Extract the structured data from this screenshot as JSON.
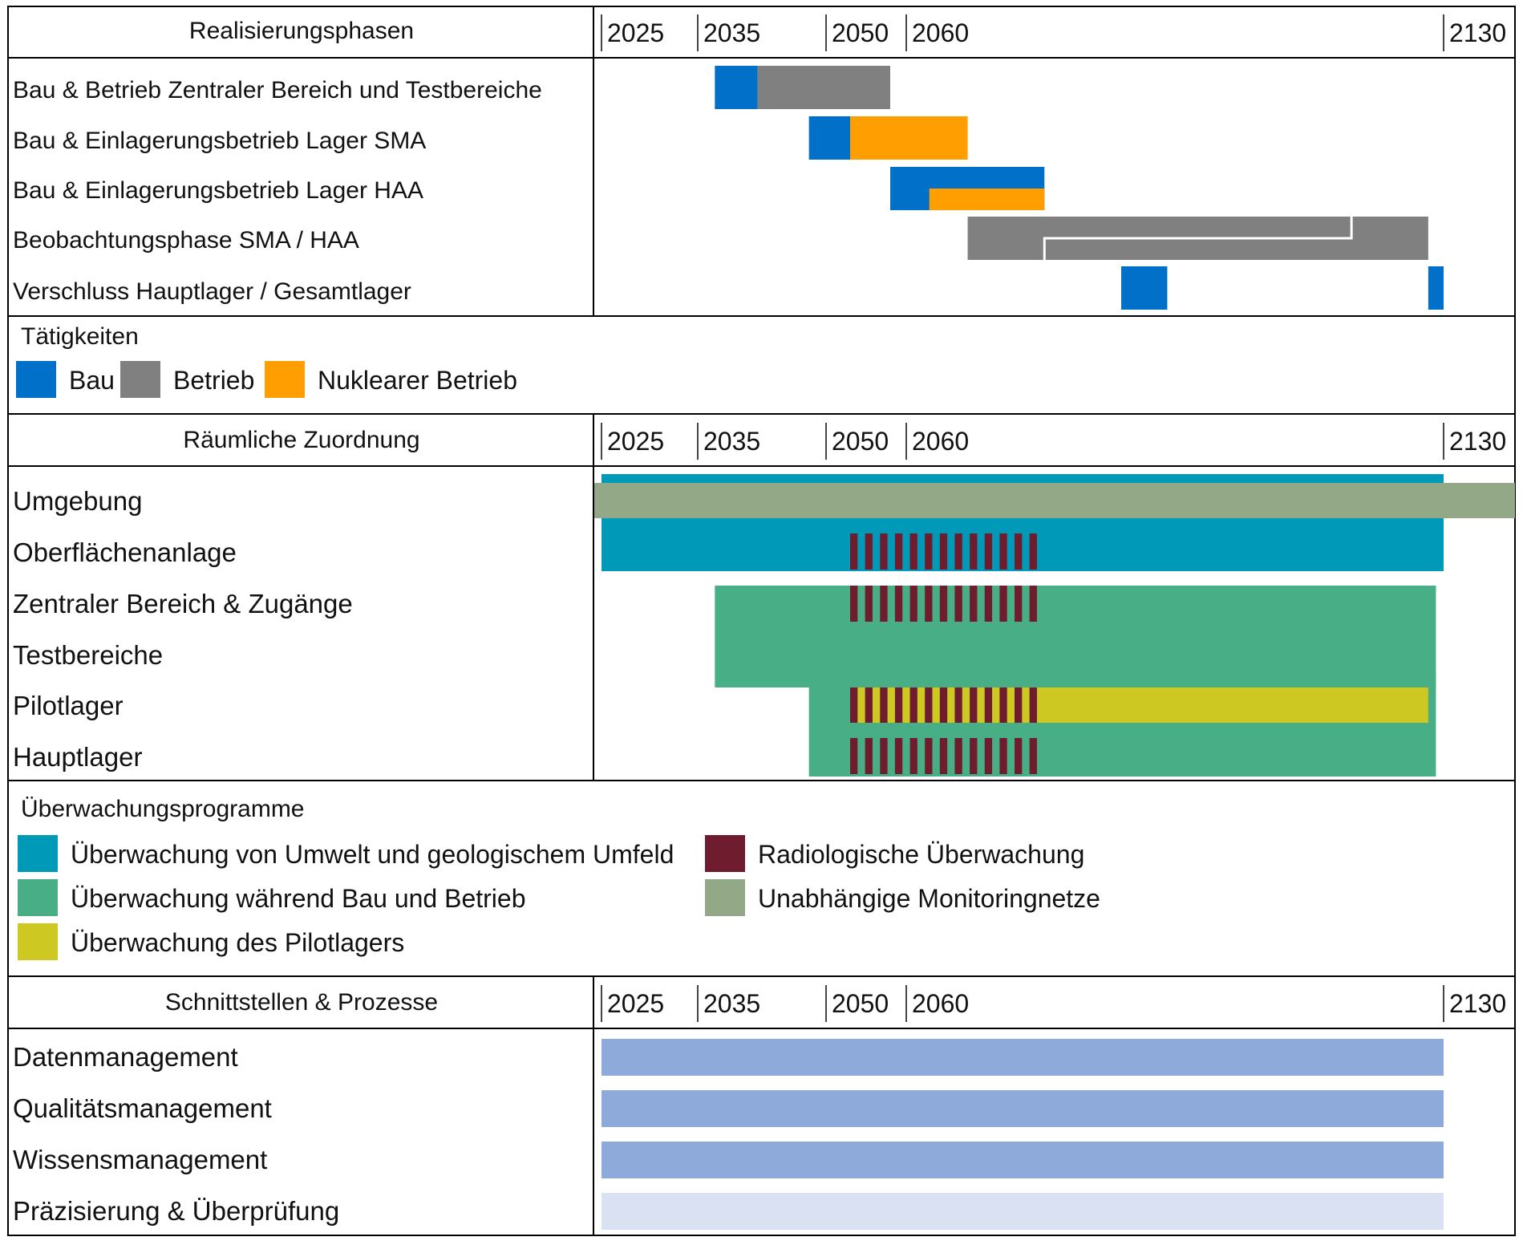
{
  "colors": {
    "bau": "#0070c8",
    "betrieb": "#808080",
    "nuklear": "#ff9e00",
    "umwelt": "#0099b8",
    "bau_betrieb": "#48ae85",
    "pilot": "#cec823",
    "radio": "#6f1d2e",
    "unabhaengig": "#93a886",
    "process": "#8eaadb",
    "process_light": "#d9e1f2"
  },
  "sections": {
    "phases": {
      "title": "Realisierungsphasen",
      "rows": [
        "Bau & Betrieb Zentraler Bereich und Testbereiche",
        "Bau & Einlagerungsbetrieb Lager SMA",
        "Bau & Einlagerungsbetrieb Lager HAA",
        "Beobachtungsphase SMA / HAA",
        "Verschluss Hauptlager / Gesamtlager"
      ]
    },
    "spatial": {
      "title": "Räumliche Zuordnung",
      "rows": [
        "Umgebung",
        "Oberflächenanlage",
        "Zentraler Bereich & Zugänge",
        "Testbereiche",
        "Pilotlager",
        "Hauptlager"
      ]
    },
    "processes": {
      "title": "Schnittstellen & Prozesse",
      "rows": [
        "Datenmanagement",
        "Qualitätsmanagement",
        "Wissensmanagement",
        "Präzisierung & Überprüfung"
      ]
    }
  },
  "axis_ticks": [
    "2025",
    "2035",
    "2050",
    "2060",
    "2130"
  ],
  "legend_activities": {
    "title": "Tätigkeiten",
    "items": [
      {
        "label": "Bau",
        "color": "#0070c8"
      },
      {
        "label": "Betrieb",
        "color": "#808080"
      },
      {
        "label": "Nuklearer Betrieb",
        "color": "#ff9e00"
      }
    ]
  },
  "legend_monitoring": {
    "title": "Überwachungsprogramme",
    "items": [
      {
        "label": "Überwachung von Umwelt und geologischem Umfeld",
        "color": "#0099b8"
      },
      {
        "label": "Radiologische Überwachung",
        "color": "#6f1d2e"
      },
      {
        "label": "Überwachung während Bau und Betrieb",
        "color": "#48ae85"
      },
      {
        "label": "Unabhängige Monitoringnetze",
        "color": "#93a886"
      },
      {
        "label": "Überwachung des Pilotlagers",
        "color": "#cec823"
      }
    ]
  },
  "chart_data": {
    "type": "gantt",
    "x_unit": "year",
    "x_ticks": [
      2025,
      2035,
      2050,
      2060,
      2130
    ],
    "phases": [
      {
        "row": "Bau & Betrieb Zentraler Bereich und Testbereiche",
        "segments": [
          {
            "activity": "Bau",
            "start": 2037,
            "end": 2042
          },
          {
            "activity": "Betrieb",
            "start": 2042,
            "end": 2058
          }
        ]
      },
      {
        "row": "Bau & Einlagerungsbetrieb Lager SMA",
        "segments": [
          {
            "activity": "Bau",
            "start": 2048,
            "end": 2053
          },
          {
            "activity": "Nuklearer Betrieb",
            "start": 2053,
            "end": 2068
          }
        ]
      },
      {
        "row": "Bau & Einlagerungsbetrieb Lager HAA",
        "segments": [
          {
            "activity": "Bau",
            "start": 2058,
            "end": 2078
          },
          {
            "activity": "Nuklearer Betrieb",
            "start": 2063,
            "end": 2078
          }
        ]
      },
      {
        "row": "Beobachtungsphase SMA / HAA",
        "segments": [
          {
            "activity": "Betrieb",
            "start": 2068,
            "end": 2128
          },
          {
            "activity": "Betrieb",
            "start": 2078,
            "end": 2118
          }
        ]
      },
      {
        "row": "Verschluss Hauptlager / Gesamtlager",
        "segments": [
          {
            "activity": "Bau",
            "start": 2088,
            "end": 2094
          },
          {
            "activity": "Bau",
            "start": 2128,
            "end": 2130
          }
        ]
      }
    ],
    "spatial": [
      {
        "row": "Umgebung",
        "programs": [
          {
            "program": "Überwachung von Umwelt und geologischem Umfeld",
            "start": 2025,
            "end": 2130
          },
          {
            "program": "Unabhängige Monitoringnetze",
            "start": 2024,
            "end": 2138
          }
        ]
      },
      {
        "row": "Oberflächenanlage",
        "programs": [
          {
            "program": "Überwachung von Umwelt und geologischem Umfeld",
            "start": 2025,
            "end": 2130
          },
          {
            "program": "Radiologische Überwachung",
            "start": 2053,
            "end": 2078
          }
        ]
      },
      {
        "row": "Zentraler Bereich & Zugänge",
        "programs": [
          {
            "program": "Überwachung während Bau und Betrieb",
            "start": 2037,
            "end": 2129
          },
          {
            "program": "Radiologische Überwachung",
            "start": 2053,
            "end": 2078
          }
        ]
      },
      {
        "row": "Testbereiche",
        "programs": [
          {
            "program": "Überwachung während Bau und Betrieb",
            "start": 2037,
            "end": 2129
          }
        ]
      },
      {
        "row": "Pilotlager",
        "programs": [
          {
            "program": "Überwachung während Bau und Betrieb",
            "start": 2048,
            "end": 2129
          },
          {
            "program": "Überwachung des Pilotlagers",
            "start": 2053,
            "end": 2128
          },
          {
            "program": "Radiologische Überwachung",
            "start": 2053,
            "end": 2078
          }
        ]
      },
      {
        "row": "Hauptlager",
        "programs": [
          {
            "program": "Überwachung während Bau und Betrieb",
            "start": 2048,
            "end": 2129
          },
          {
            "program": "Radiologische Überwachung",
            "start": 2053,
            "end": 2078
          }
        ]
      }
    ],
    "processes": [
      {
        "row": "Datenmanagement",
        "start": 2025,
        "end": 2130
      },
      {
        "row": "Qualitätsmanagement",
        "start": 2025,
        "end": 2130
      },
      {
        "row": "Wissensmanagement",
        "start": 2025,
        "end": 2130
      },
      {
        "row": "Präzisierung & Überprüfung",
        "start": 2025,
        "end": 2130,
        "light": true
      }
    ]
  }
}
